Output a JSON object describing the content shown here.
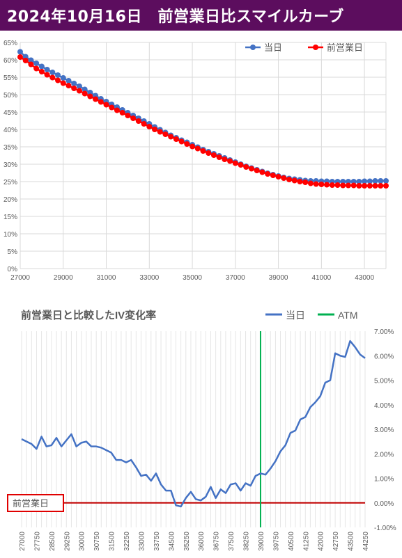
{
  "header": {
    "title": "2024年10月16日　前営業日比スマイルカーブ",
    "bg_color": "#5c0d5e"
  },
  "chart_data": [
    {
      "type": "line",
      "title": "",
      "xlabel": "",
      "ylabel": "",
      "xlim": [
        27000,
        44000
      ],
      "ylim": [
        0,
        65
      ],
      "x_ticks": [
        "27000",
        "29000",
        "31000",
        "33000",
        "35000",
        "37000",
        "39000",
        "41000",
        "43000"
      ],
      "y_ticks": [
        "0%",
        "5%",
        "10%",
        "15%",
        "20%",
        "25%",
        "30%",
        "35%",
        "40%",
        "45%",
        "50%",
        "55%",
        "60%",
        "65%"
      ],
      "legend_position": "top-right",
      "grid": true,
      "x": [
        27000,
        27250,
        27500,
        27750,
        28000,
        28250,
        28500,
        28750,
        29000,
        29250,
        29500,
        29750,
        30000,
        30250,
        30500,
        30750,
        31000,
        31250,
        31500,
        31750,
        32000,
        32250,
        32500,
        32750,
        33000,
        33250,
        33500,
        33750,
        34000,
        34250,
        34500,
        34750,
        35000,
        35250,
        35500,
        35750,
        36000,
        36250,
        36500,
        36750,
        37000,
        37250,
        37500,
        37750,
        38000,
        38250,
        38500,
        38750,
        39000,
        39250,
        39500,
        39750,
        40000,
        40250,
        40500,
        40750,
        41000,
        41250,
        41500,
        41750,
        42000,
        42250,
        42500,
        42750,
        43000,
        43250,
        43500,
        43750,
        44000
      ],
      "series": [
        {
          "name": "当日",
          "color": "#4472c4",
          "values": [
            62.3,
            60.9,
            59.9,
            59.0,
            58.1,
            57.2,
            56.4,
            55.6,
            54.8,
            54.0,
            53.2,
            52.4,
            51.5,
            50.6,
            49.7,
            48.8,
            48.0,
            47.2,
            46.4,
            45.6,
            44.8,
            44.0,
            43.2,
            42.4,
            41.6,
            40.7,
            39.9,
            39.1,
            38.3,
            37.6,
            36.9,
            36.3,
            35.6,
            34.9,
            34.2,
            33.6,
            33.0,
            32.4,
            31.8,
            31.2,
            30.6,
            30.0,
            29.4,
            28.9,
            28.4,
            27.9,
            27.4,
            27.0,
            26.6,
            26.2,
            25.9,
            25.7,
            25.5,
            25.3,
            25.2,
            25.2,
            25.1,
            25.1,
            25.0,
            25.0,
            25.0,
            25.0,
            25.0,
            25.0,
            25.1,
            25.1,
            25.2,
            25.2,
            25.2
          ]
        },
        {
          "name": "前営業日",
          "color": "#ff0000",
          "values": [
            60.8,
            59.8,
            58.7,
            57.5,
            56.6,
            55.7,
            54.9,
            54.1,
            53.3,
            52.6,
            51.8,
            51.1,
            50.3,
            49.5,
            48.7,
            47.9,
            47.1,
            46.3,
            45.5,
            44.8,
            44.0,
            43.2,
            42.4,
            41.6,
            40.8,
            40.0,
            39.3,
            38.6,
            37.9,
            37.2,
            36.5,
            35.8,
            35.1,
            34.5,
            33.8,
            33.2,
            32.6,
            32.0,
            31.4,
            30.9,
            30.3,
            29.8,
            29.2,
            28.7,
            28.2,
            27.7,
            27.2,
            26.8,
            26.4,
            26.0,
            25.6,
            25.3,
            25.0,
            24.8,
            24.5,
            24.3,
            24.2,
            24.1,
            24.0,
            24.0,
            23.9,
            23.9,
            23.9,
            23.8,
            23.8,
            23.8,
            23.8,
            23.8,
            23.8
          ]
        }
      ]
    },
    {
      "type": "line",
      "title": "前営業日と比較したIV変化率",
      "xlabel": "",
      "ylabel": "",
      "xlim": [
        27000,
        44250
      ],
      "ylim": [
        -1,
        7
      ],
      "x_ticks": [
        "27000",
        "27250",
        "27500",
        "27750",
        "28000",
        "28250",
        "28500",
        "28750",
        "29000",
        "29250",
        "29500",
        "29750",
        "30000",
        "30250",
        "30500",
        "30750",
        "31000",
        "31250",
        "31500",
        "31750",
        "32000",
        "32250",
        "32500",
        "32750",
        "33000",
        "33250",
        "33500",
        "33750",
        "34000",
        "34250",
        "34500",
        "34750",
        "35000",
        "35250",
        "35500",
        "35750",
        "36000",
        "36250",
        "36500",
        "36750",
        "37000",
        "37250",
        "37500",
        "37750",
        "38000",
        "38250",
        "38500",
        "38750",
        "39000",
        "39250",
        "39500",
        "39750",
        "40000",
        "40250",
        "40500",
        "40750",
        "41000",
        "41250",
        "41500",
        "41750",
        "42000",
        "42250",
        "42500",
        "42750",
        "43000",
        "43250",
        "43500",
        "43750",
        "44000",
        "44250"
      ],
      "x_tick_labels_shown": [
        "27000",
        "27750",
        "28500",
        "29250",
        "30000",
        "30750",
        "31500",
        "32250",
        "33000",
        "33750",
        "34500",
        "35250",
        "36000",
        "36750",
        "37500",
        "38250",
        "39000",
        "39750",
        "40500",
        "41250",
        "42000",
        "42750",
        "43500",
        "44250"
      ],
      "y_ticks": [
        "-1.00%",
        "0.00%",
        "1.00%",
        "2.00%",
        "3.00%",
        "4.00%",
        "5.00%",
        "6.00%",
        "7.00%"
      ],
      "legend_position": "top-right",
      "grid": true,
      "atm": {
        "name": "ATM",
        "x": 39000,
        "color": "#00b050"
      },
      "zero_line_label": "前営業日",
      "zero_line_color": "#c00000",
      "x": [
        27000,
        27250,
        27500,
        27750,
        28000,
        28250,
        28500,
        28750,
        29000,
        29250,
        29500,
        29750,
        30000,
        30250,
        30500,
        30750,
        31000,
        31250,
        31500,
        31750,
        32000,
        32250,
        32500,
        32750,
        33000,
        33250,
        33500,
        33750,
        34000,
        34250,
        34500,
        34750,
        35000,
        35250,
        35500,
        35750,
        36000,
        36250,
        36500,
        36750,
        37000,
        37250,
        37500,
        37750,
        38000,
        38250,
        38500,
        38750,
        39000,
        39250,
        39500,
        39750,
        40000,
        40250,
        40500,
        40750,
        41000,
        41250,
        41500,
        41750,
        42000,
        42250,
        42500,
        42750,
        43000,
        43250,
        43500,
        43750,
        44000,
        44250
      ],
      "series": [
        {
          "name": "当日",
          "color": "#4472c4",
          "values": [
            2.6,
            2.5,
            2.4,
            2.2,
            2.7,
            2.3,
            2.35,
            2.65,
            2.3,
            2.55,
            2.8,
            2.3,
            2.45,
            2.5,
            2.3,
            2.3,
            2.25,
            2.15,
            2.05,
            1.75,
            1.75,
            1.65,
            1.75,
            1.45,
            1.1,
            1.15,
            0.9,
            1.2,
            0.75,
            0.5,
            0.5,
            -0.1,
            -0.15,
            0.2,
            0.45,
            0.15,
            0.1,
            0.25,
            0.65,
            0.2,
            0.55,
            0.4,
            0.75,
            0.8,
            0.5,
            0.8,
            0.7,
            1.1,
            1.2,
            1.15,
            1.4,
            1.7,
            2.1,
            2.35,
            2.85,
            2.95,
            3.4,
            3.5,
            3.9,
            4.1,
            4.35,
            4.9,
            5.0,
            6.1,
            6.0,
            5.95,
            6.6,
            6.35,
            6.05,
            5.9
          ]
        },
        {
          "name": "前営業日",
          "color": "#c00000",
          "values": [
            0,
            0,
            0,
            0,
            0,
            0,
            0,
            0,
            0,
            0,
            0,
            0,
            0,
            0,
            0,
            0,
            0,
            0,
            0,
            0,
            0,
            0,
            0,
            0,
            0,
            0,
            0,
            0,
            0,
            0,
            0,
            0,
            0,
            0,
            0,
            0,
            0,
            0,
            0,
            0,
            0,
            0,
            0,
            0,
            0,
            0,
            0,
            0,
            0,
            0,
            0,
            0,
            0,
            0,
            0,
            0,
            0,
            0,
            0,
            0,
            0,
            0,
            0,
            0,
            0,
            0,
            0,
            0,
            0,
            0
          ]
        }
      ]
    }
  ]
}
